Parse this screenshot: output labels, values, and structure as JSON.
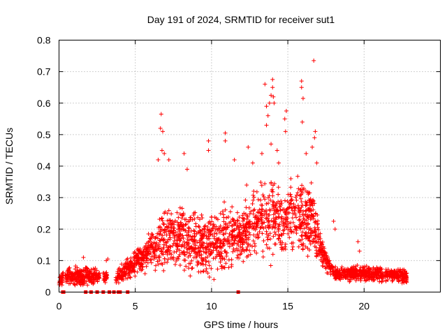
{
  "chart_data": {
    "type": "scatter",
    "title": "Day 191 of 2024, SRMTID for receiver sut1",
    "xlabel": "GPS time / hours",
    "ylabel": "SRMTID / TECUs",
    "xlim": [
      0,
      25
    ],
    "ylim": [
      0,
      0.8
    ],
    "xticks": [
      "0",
      "5",
      "10",
      "15",
      "20"
    ],
    "yticks": [
      "0",
      "0.1",
      "0.2",
      "0.3",
      "0.4",
      "0.5",
      "0.6",
      "0.7",
      "0.8"
    ],
    "grid": true,
    "marker": "+",
    "color": "#ff0000",
    "envelope": [
      {
        "t": 0.0,
        "base": 0.04,
        "spread": 0.03
      },
      {
        "t": 1.0,
        "base": 0.05,
        "spread": 0.04
      },
      {
        "t": 2.0,
        "base": 0.05,
        "spread": 0.04
      },
      {
        "t": 2.5,
        "base": 0.05,
        "spread": 0.03
      },
      {
        "t": 3.7,
        "base": 0.04,
        "spread": 0.02
      },
      {
        "t": 4.6,
        "base": 0.08,
        "spread": 0.05
      },
      {
        "t": 5.5,
        "base": 0.11,
        "spread": 0.06
      },
      {
        "t": 6.5,
        "base": 0.16,
        "spread": 0.12
      },
      {
        "t": 7.5,
        "base": 0.18,
        "spread": 0.12
      },
      {
        "t": 8.5,
        "base": 0.17,
        "spread": 0.14
      },
      {
        "t": 9.5,
        "base": 0.14,
        "spread": 0.12
      },
      {
        "t": 10.5,
        "base": 0.16,
        "spread": 0.16
      },
      {
        "t": 11.5,
        "base": 0.17,
        "spread": 0.1
      },
      {
        "t": 12.5,
        "base": 0.2,
        "spread": 0.12
      },
      {
        "t": 13.5,
        "base": 0.24,
        "spread": 0.18
      },
      {
        "t": 14.5,
        "base": 0.22,
        "spread": 0.16
      },
      {
        "t": 15.5,
        "base": 0.25,
        "spread": 0.14
      },
      {
        "t": 16.5,
        "base": 0.24,
        "spread": 0.15
      },
      {
        "t": 17.3,
        "base": 0.12,
        "spread": 0.05
      },
      {
        "t": 18.0,
        "base": 0.06,
        "spread": 0.03
      },
      {
        "t": 19.0,
        "base": 0.06,
        "spread": 0.03
      },
      {
        "t": 20.0,
        "base": 0.06,
        "spread": 0.03
      },
      {
        "t": 21.0,
        "base": 0.055,
        "spread": 0.03
      },
      {
        "t": 22.0,
        "base": 0.055,
        "spread": 0.03
      },
      {
        "t": 22.8,
        "base": 0.05,
        "spread": 0.03
      }
    ],
    "gaps": [
      [
        0.3,
        0.4
      ],
      [
        2.65,
        2.9
      ],
      [
        3.15,
        3.7
      ]
    ],
    "extremes": [
      {
        "x": 6.7,
        "y": 0.565
      },
      {
        "x": 6.65,
        "y": 0.52
      },
      {
        "x": 6.8,
        "y": 0.51
      },
      {
        "x": 6.75,
        "y": 0.45
      },
      {
        "x": 6.9,
        "y": 0.44
      },
      {
        "x": 6.5,
        "y": 0.42
      },
      {
        "x": 7.2,
        "y": 0.42
      },
      {
        "x": 8.4,
        "y": 0.39
      },
      {
        "x": 8.2,
        "y": 0.44
      },
      {
        "x": 9.8,
        "y": 0.48
      },
      {
        "x": 9.8,
        "y": 0.45
      },
      {
        "x": 10.9,
        "y": 0.505
      },
      {
        "x": 10.9,
        "y": 0.48
      },
      {
        "x": 11.5,
        "y": 0.42
      },
      {
        "x": 12.7,
        "y": 0.41
      },
      {
        "x": 12.4,
        "y": 0.46
      },
      {
        "x": 13.3,
        "y": 0.44
      },
      {
        "x": 13.6,
        "y": 0.53
      },
      {
        "x": 13.6,
        "y": 0.59
      },
      {
        "x": 13.7,
        "y": 0.56
      },
      {
        "x": 13.8,
        "y": 0.6
      },
      {
        "x": 13.9,
        "y": 0.625
      },
      {
        "x": 14.0,
        "y": 0.675
      },
      {
        "x": 14.0,
        "y": 0.65
      },
      {
        "x": 14.05,
        "y": 0.62
      },
      {
        "x": 14.1,
        "y": 0.6
      },
      {
        "x": 13.5,
        "y": 0.66
      },
      {
        "x": 13.9,
        "y": 0.47
      },
      {
        "x": 14.3,
        "y": 0.45
      },
      {
        "x": 14.4,
        "y": 0.41
      },
      {
        "x": 14.8,
        "y": 0.55
      },
      {
        "x": 14.9,
        "y": 0.575
      },
      {
        "x": 14.85,
        "y": 0.51
      },
      {
        "x": 15.9,
        "y": 0.67
      },
      {
        "x": 15.9,
        "y": 0.65
      },
      {
        "x": 16.0,
        "y": 0.615
      },
      {
        "x": 15.95,
        "y": 0.54
      },
      {
        "x": 16.7,
        "y": 0.735
      },
      {
        "x": 16.8,
        "y": 0.51
      },
      {
        "x": 16.75,
        "y": 0.49
      },
      {
        "x": 16.6,
        "y": 0.46
      },
      {
        "x": 16.9,
        "y": 0.41
      },
      {
        "x": 16.2,
        "y": 0.44
      },
      {
        "x": 15.2,
        "y": 0.36
      },
      {
        "x": 12.3,
        "y": 0.34
      },
      {
        "x": 18.0,
        "y": 0.225
      },
      {
        "x": 18.1,
        "y": 0.2
      },
      {
        "x": 19.6,
        "y": 0.16
      },
      {
        "x": 19.7,
        "y": 0.13
      },
      {
        "x": 3.1,
        "y": 0.1
      },
      {
        "x": 3.2,
        "y": 0.105
      },
      {
        "x": 1.6,
        "y": 0.11
      },
      {
        "x": 4.4,
        "y": 0.06
      },
      {
        "x": 4.2,
        "y": 0.05
      }
    ],
    "zero_flags": [
      0.25,
      0.3,
      1.75,
      2.1,
      2.5,
      2.9,
      3.3,
      3.6,
      3.9,
      4.0,
      4.5,
      11.75
    ],
    "seed": 191
  }
}
